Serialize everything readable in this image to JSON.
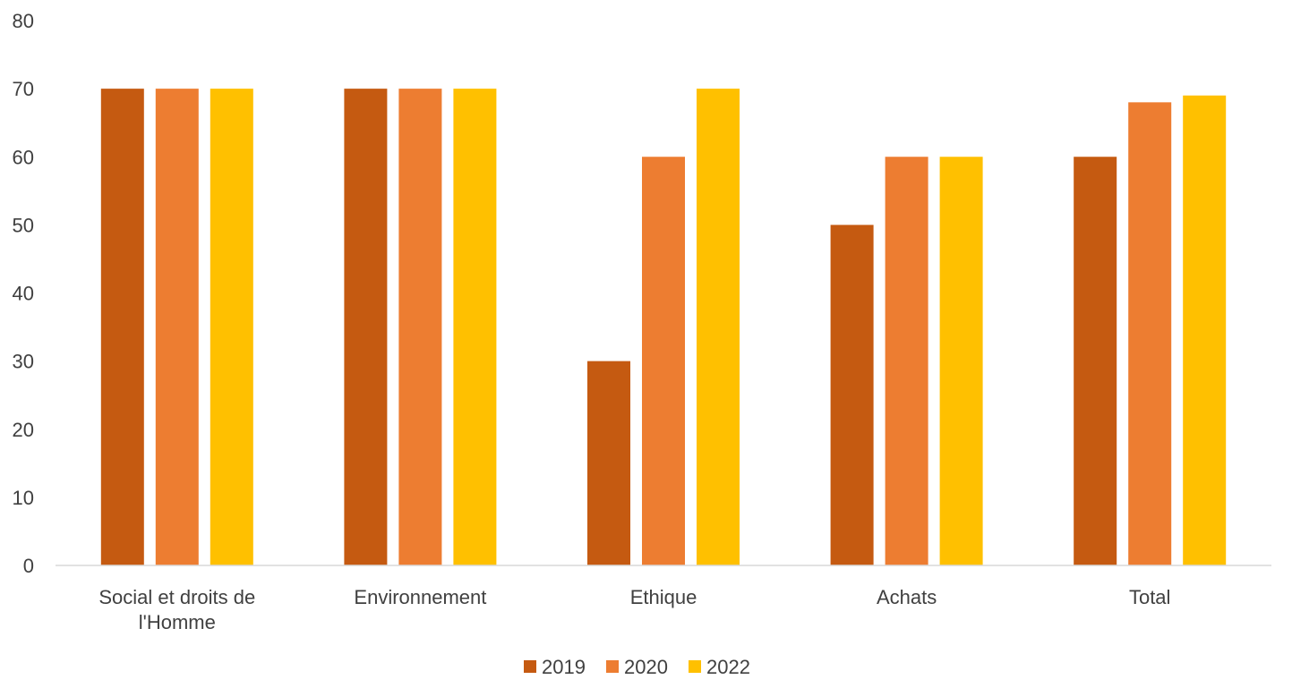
{
  "chart_data": {
    "type": "bar",
    "title": "",
    "xlabel": "",
    "ylabel": "",
    "categories": [
      [
        "Social et droits de",
        "l'Homme"
      ],
      [
        "Environnement"
      ],
      [
        "Ethique"
      ],
      [
        "Achats"
      ],
      [
        "Total"
      ]
    ],
    "series": [
      {
        "name": "2019",
        "color": "#C55A11",
        "values": [
          70,
          70,
          30,
          50,
          60
        ]
      },
      {
        "name": "2020",
        "color": "#ED7D31",
        "values": [
          70,
          70,
          60,
          60,
          68
        ]
      },
      {
        "name": "2022",
        "color": "#FFC000",
        "values": [
          70,
          70,
          70,
          60,
          69
        ]
      }
    ],
    "ylim": [
      0,
      80
    ],
    "yticks": [
      0,
      10,
      20,
      30,
      40,
      50,
      60,
      70,
      80
    ],
    "grid": false,
    "legend": "bottom-center",
    "axis_color": "#D9D9D9"
  }
}
